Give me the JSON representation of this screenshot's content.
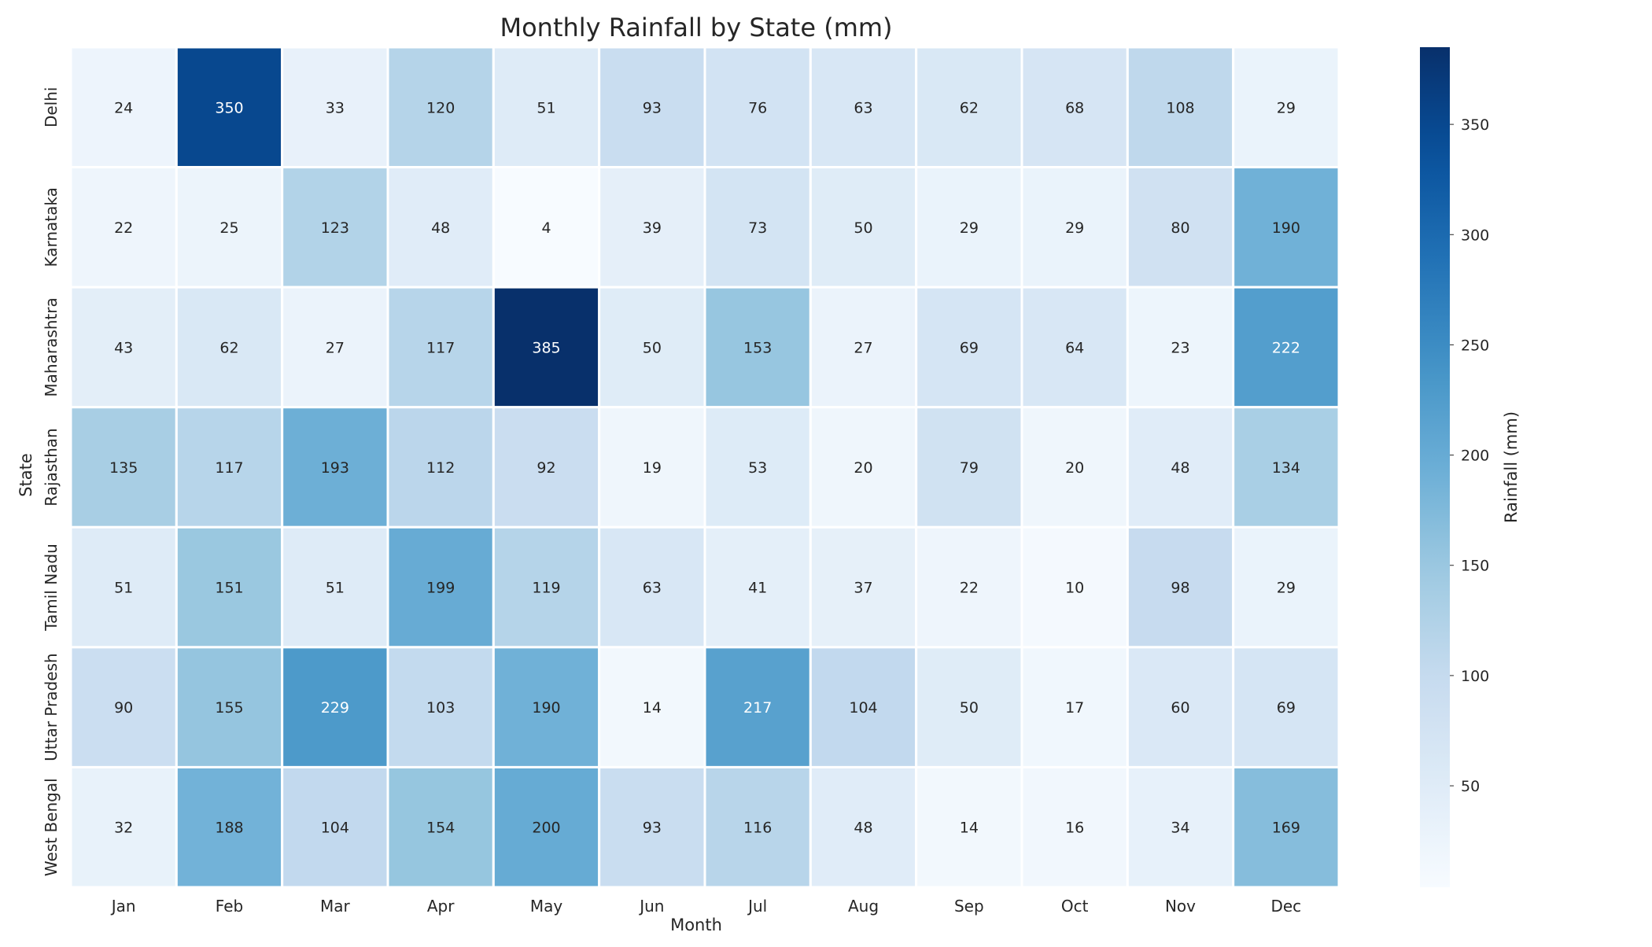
{
  "chart_data": {
    "type": "heatmap",
    "title": "Monthly Rainfall by State (mm)",
    "xlabel": "Month",
    "ylabel": "State",
    "x_categories": [
      "Jan",
      "Feb",
      "Mar",
      "Apr",
      "May",
      "Jun",
      "Jul",
      "Aug",
      "Sep",
      "Oct",
      "Nov",
      "Dec"
    ],
    "y_categories": [
      "Delhi",
      "Karnataka",
      "Maharashtra",
      "Rajasthan",
      "Tamil Nadu",
      "Uttar Pradesh",
      "West Bengal"
    ],
    "values": [
      [
        24,
        350,
        33,
        120,
        51,
        93,
        76,
        63,
        62,
        68,
        108,
        29
      ],
      [
        22,
        25,
        123,
        48,
        4,
        39,
        73,
        50,
        29,
        29,
        80,
        190
      ],
      [
        43,
        62,
        27,
        117,
        385,
        50,
        153,
        27,
        69,
        64,
        23,
        222
      ],
      [
        135,
        117,
        193,
        112,
        92,
        19,
        53,
        20,
        79,
        20,
        48,
        134
      ],
      [
        51,
        151,
        51,
        199,
        119,
        63,
        41,
        37,
        22,
        10,
        98,
        29
      ],
      [
        90,
        155,
        229,
        103,
        190,
        14,
        217,
        104,
        50,
        17,
        60,
        69
      ],
      [
        32,
        188,
        104,
        154,
        200,
        93,
        116,
        48,
        14,
        16,
        34,
        169
      ]
    ],
    "colorbar": {
      "label": "Rainfall (mm)",
      "min": 4,
      "max": 385,
      "ticks": [
        50,
        100,
        150,
        200,
        250,
        300,
        350
      ],
      "colormap": "Blues"
    }
  }
}
